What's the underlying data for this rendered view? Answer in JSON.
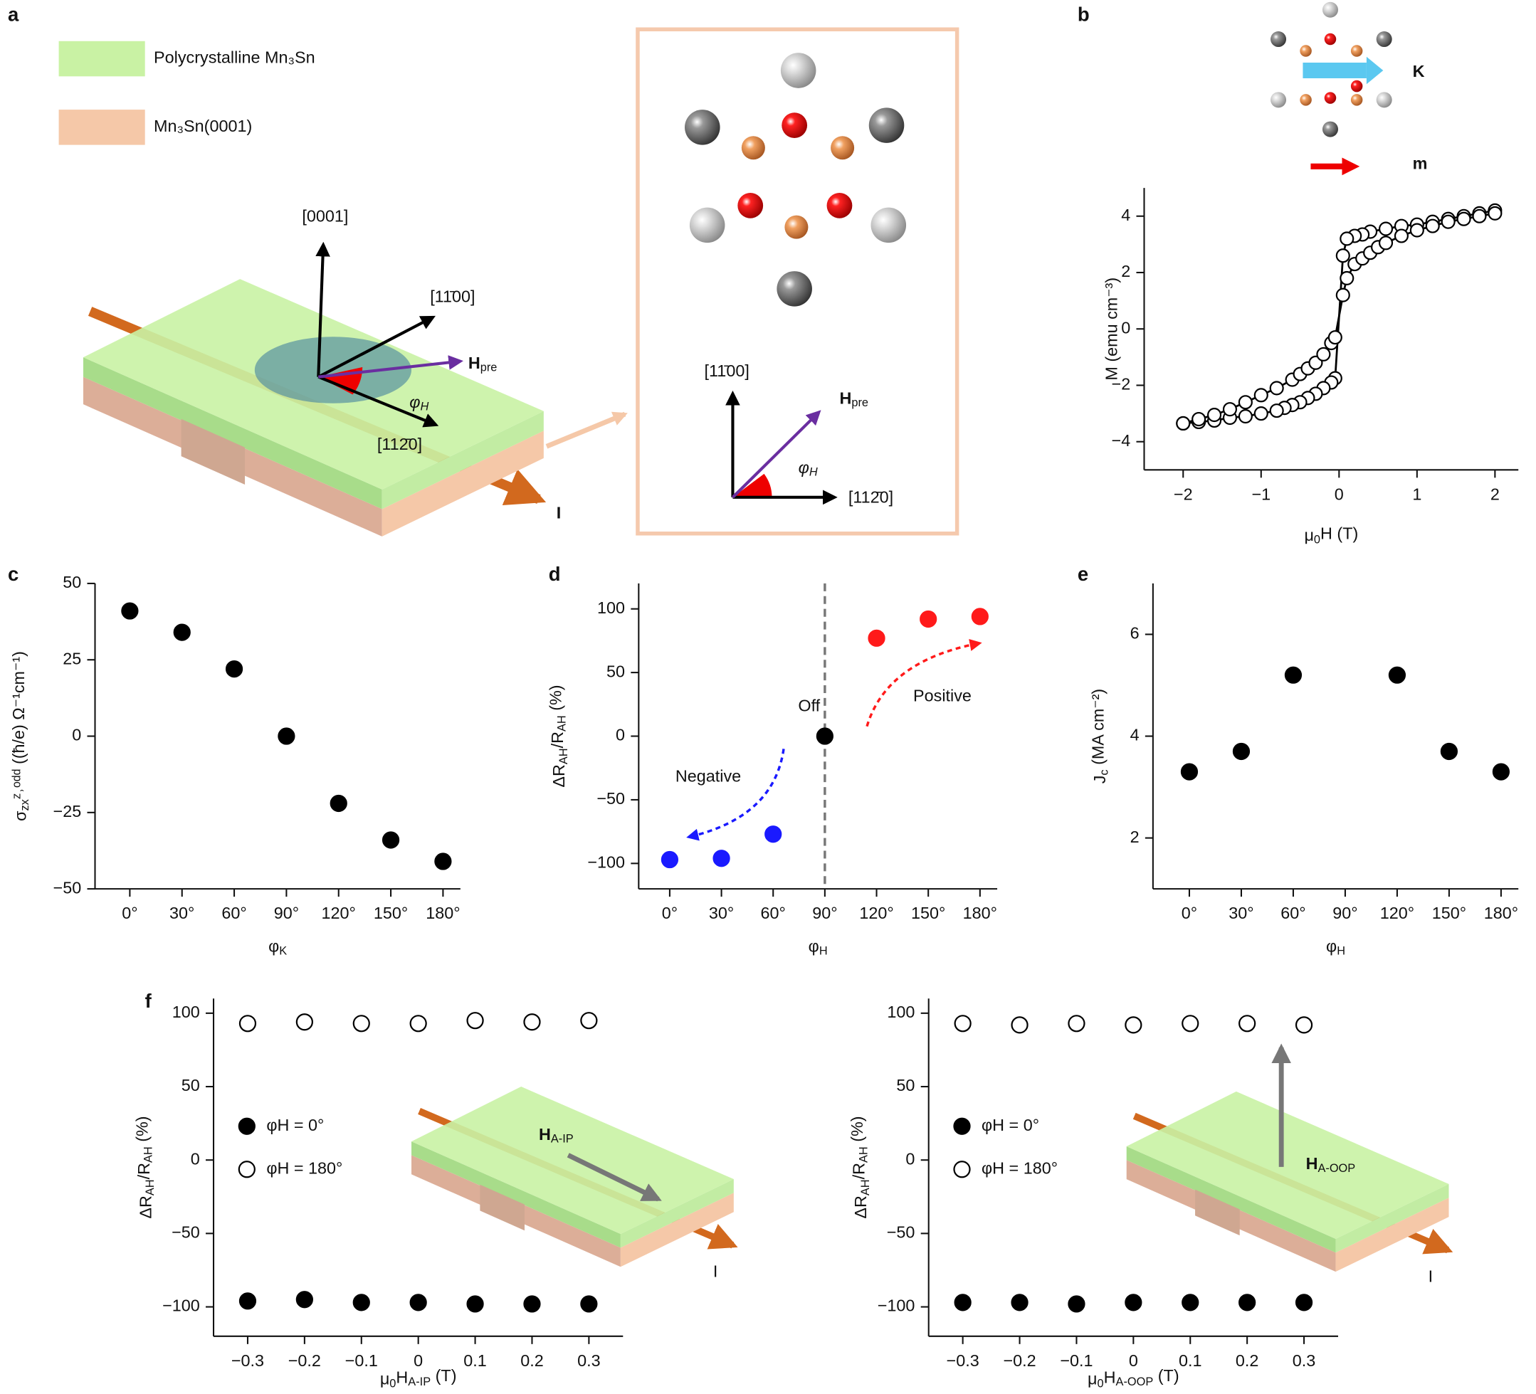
{
  "panel_labels": [
    "a",
    "b",
    "c",
    "d",
    "e",
    "f"
  ],
  "diagram_a": {
    "legend": [
      "Polycrystalline Mn₃Sn",
      "Mn₃Sn(0001)"
    ],
    "axis_labels": [
      "[0001]",
      "[11̄00]",
      "[112̄0]"
    ],
    "field_label": [
      "H",
      "pre"
    ],
    "angle_label": [
      "φ",
      "H"
    ],
    "current_label": "I",
    "inset_axis_labels": [
      "[11̄00]",
      "[112̄0]"
    ],
    "inset_field_label": [
      "H",
      "pre"
    ],
    "inset_angle_label": [
      "φ",
      "H"
    ]
  },
  "diagram_b": {
    "k_label": "K",
    "m_label": "m"
  },
  "diagram_f": {
    "field_labels": [
      [
        "H",
        "A-IP"
      ],
      [
        "H",
        "A-OOP"
      ]
    ],
    "current_labels": [
      "I",
      "I"
    ]
  },
  "chart_data": [
    {
      "type": "line",
      "x_label": [
        "μ",
        "0",
        "H (T)"
      ],
      "y_label": [
        "M (emu cm⁻³)"
      ],
      "xlim": [
        -2.5,
        2.3
      ],
      "xticks": [
        {
          "value": -2,
          "label": "−2"
        },
        {
          "value": -1,
          "label": "−1"
        },
        0,
        1,
        2
      ],
      "ylim": [
        -5,
        5
      ],
      "yticks": [
        {
          "value": -4,
          "label": "−4"
        },
        {
          "value": -2,
          "label": "−2"
        },
        0,
        2,
        4
      ],
      "series": [
        {
          "color": "#000000",
          "fill": "#ffffff",
          "x": [
            2,
            1.8,
            1.6,
            1.4,
            1.2,
            1,
            0.8,
            0.6,
            0.4,
            0.3,
            0.2,
            0.1,
            0.05,
            -0.05,
            -0.1,
            -0.2,
            -0.3,
            -0.4,
            -0.5,
            -0.6,
            -0.7,
            -0.8,
            -1,
            -1.2,
            -1.4,
            -1.6,
            -1.8,
            -2
          ],
          "values": [
            4.2,
            4.1,
            4.0,
            3.9,
            3.8,
            3.7,
            3.65,
            3.55,
            3.45,
            3.35,
            3.3,
            3.2,
            2.6,
            -1.75,
            -1.9,
            -2.1,
            -2.3,
            -2.45,
            -2.6,
            -2.7,
            -2.8,
            -2.9,
            -3.0,
            -3.1,
            -3.15,
            -3.25,
            -3.3,
            -3.35
          ]
        },
        {
          "color": "#000000",
          "fill": "#ffffff",
          "x": [
            -2,
            -1.8,
            -1.6,
            -1.4,
            -1.2,
            -1,
            -0.8,
            -0.6,
            -0.5,
            -0.4,
            -0.3,
            -0.2,
            -0.1,
            -0.05,
            0.05,
            0.1,
            0.2,
            0.3,
            0.4,
            0.5,
            0.6,
            0.8,
            1,
            1.2,
            1.4,
            1.6,
            1.8,
            2
          ],
          "values": [
            -3.35,
            -3.2,
            -3.05,
            -2.85,
            -2.6,
            -2.35,
            -2.1,
            -1.8,
            -1.6,
            -1.4,
            -1.2,
            -0.9,
            -0.5,
            -0.3,
            1.2,
            1.8,
            2.3,
            2.5,
            2.7,
            2.9,
            3.05,
            3.3,
            3.5,
            3.65,
            3.8,
            3.9,
            4.0,
            4.1
          ]
        }
      ]
    },
    {
      "type": "scatter",
      "x_label": [
        "φ",
        "K"
      ],
      "y_label": [
        "σ",
        "zx",
        "ᶻ˒ᵒᵈᵈ ((ħ/e) Ω⁻¹cm⁻¹)"
      ],
      "xlim": [
        -20,
        190
      ],
      "xticks": [
        {
          "value": 0,
          "label": "0°"
        },
        {
          "value": 30,
          "label": "30°"
        },
        {
          "value": 60,
          "label": "60°"
        },
        {
          "value": 90,
          "label": "90°"
        },
        {
          "value": 120,
          "label": "120°"
        },
        {
          "value": 150,
          "label": "150°"
        },
        {
          "value": 180,
          "label": "180°"
        }
      ],
      "ylim": [
        -50,
        50
      ],
      "yticks": [
        {
          "value": -50,
          "label": "−50"
        },
        {
          "value": -25,
          "label": "−25"
        },
        0,
        25,
        50
      ],
      "x": [
        0,
        30,
        60,
        90,
        120,
        150,
        180
      ],
      "series": [
        {
          "color": "#000000",
          "fill": "#000000",
          "values": [
            41,
            34,
            22,
            0,
            -22,
            -34,
            -41
          ]
        }
      ]
    },
    {
      "type": "scatter",
      "x_label": [
        "φ",
        "H"
      ],
      "y_label": [
        "ΔR",
        "AH",
        "/R",
        "AH",
        " (%)"
      ],
      "xlim": [
        -18,
        190
      ],
      "xticks": [
        {
          "value": 0,
          "label": "0°"
        },
        {
          "value": 30,
          "label": "30°"
        },
        {
          "value": 60,
          "label": "60°"
        },
        {
          "value": 90,
          "label": "90°"
        },
        {
          "value": 120,
          "label": "120°"
        },
        {
          "value": 150,
          "label": "150°"
        },
        {
          "value": 180,
          "label": "180°"
        }
      ],
      "ylim": [
        -120,
        120
      ],
      "yticks": [
        {
          "value": -100,
          "label": "−100"
        },
        {
          "value": -50,
          "label": "−50"
        },
        0,
        50,
        100
      ],
      "vline": 90,
      "annotations": [
        "Off",
        "Positive",
        "Negative"
      ],
      "series": [
        {
          "color": "#1a1aff",
          "fill": "#1a1aff",
          "x": [
            0,
            30,
            60
          ],
          "values": [
            -97,
            -96,
            -77
          ]
        },
        {
          "color": "#000000",
          "fill": "#000000",
          "x": [
            90
          ],
          "values": [
            0
          ]
        },
        {
          "color": "#ff1a1a",
          "fill": "#ff1a1a",
          "x": [
            120,
            150,
            180
          ],
          "values": [
            77,
            92,
            94
          ]
        }
      ]
    },
    {
      "type": "scatter",
      "x_label": [
        "φ",
        "H"
      ],
      "y_label": [
        "J",
        "c",
        " (MA cm⁻²)"
      ],
      "xlim": [
        -21,
        190
      ],
      "xticks": [
        {
          "value": 0,
          "label": "0°"
        },
        {
          "value": 30,
          "label": "30°"
        },
        {
          "value": 60,
          "label": "60°"
        },
        {
          "value": 90,
          "label": "90°"
        },
        {
          "value": 120,
          "label": "120°"
        },
        {
          "value": 150,
          "label": "150°"
        },
        {
          "value": 180,
          "label": "180°"
        }
      ],
      "ylim": [
        1,
        7
      ],
      "yticks": [
        2,
        4,
        6
      ],
      "x": [
        0,
        30,
        60,
        120,
        150,
        180
      ],
      "series": [
        {
          "color": "#000000",
          "fill": "#000000",
          "values": [
            3.3,
            3.7,
            5.2,
            5.2,
            3.7,
            3.3
          ]
        }
      ]
    },
    {
      "type": "scatter",
      "x_label": [
        "μ",
        "0",
        "H",
        "A-IP",
        " (T)"
      ],
      "y_label": [
        "ΔR",
        "AH",
        "/R",
        "AH",
        " (%)"
      ],
      "xlim": [
        -0.36,
        0.36
      ],
      "xticks": [
        {
          "value": -0.3,
          "label": "−0.3"
        },
        {
          "value": -0.2,
          "label": "−0.2"
        },
        {
          "value": -0.1,
          "label": "−0.1"
        },
        0,
        0.1,
        0.2,
        0.3
      ],
      "ylim": [
        -120,
        110
      ],
      "yticks": [
        {
          "value": -100,
          "label": "−100"
        },
        {
          "value": -50,
          "label": "−50"
        },
        0,
        50,
        100
      ],
      "legend": "center left",
      "x": [
        -0.3,
        -0.2,
        -0.1,
        0,
        0.1,
        0.2,
        0.3
      ],
      "series": [
        {
          "name": "φH = 0°",
          "color": "#000000",
          "fill": "#000000",
          "values": [
            -96,
            -95,
            -97,
            -97,
            -98,
            -98,
            -98
          ]
        },
        {
          "name": "φH = 180°",
          "color": "#000000",
          "fill": "#ffffff",
          "values": [
            93,
            94,
            93,
            93,
            95,
            94,
            95
          ]
        }
      ]
    },
    {
      "type": "scatter",
      "x_label": [
        "μ",
        "0",
        "H",
        "A-OOP",
        " (T)"
      ],
      "y_label": [
        "ΔR",
        "AH",
        "/R",
        "AH",
        " (%)"
      ],
      "xlim": [
        -0.36,
        0.36
      ],
      "xticks": [
        {
          "value": -0.3,
          "label": "−0.3"
        },
        {
          "value": -0.2,
          "label": "−0.2"
        },
        {
          "value": -0.1,
          "label": "−0.1"
        },
        0,
        0.1,
        0.2,
        0.3
      ],
      "ylim": [
        -120,
        110
      ],
      "yticks": [
        {
          "value": -100,
          "label": "−100"
        },
        {
          "value": -50,
          "label": "−50"
        },
        0,
        50,
        100
      ],
      "legend": "center left",
      "x": [
        -0.3,
        -0.2,
        -0.1,
        0,
        0.1,
        0.2,
        0.3
      ],
      "series": [
        {
          "name": "φH = 0°",
          "color": "#000000",
          "fill": "#000000",
          "values": [
            -97,
            -97,
            -98,
            -97,
            -97,
            -97,
            -97
          ]
        },
        {
          "name": "φH = 180°",
          "color": "#000000",
          "fill": "#ffffff",
          "values": [
            93,
            92,
            93,
            92,
            93,
            93,
            92
          ]
        }
      ]
    }
  ]
}
